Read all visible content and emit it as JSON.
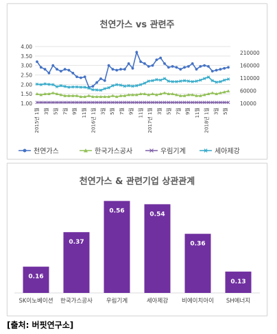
{
  "source": "[출처: 버핏연구소]",
  "chart_data": [
    {
      "type": "line",
      "title": "천연가스 vs 관련주",
      "x_tick_labels": [
        "2015년 1월",
        "3월",
        "5월",
        "7월",
        "9월",
        "11월",
        "2016년 1월",
        "3월",
        "5월",
        "7월",
        "9월",
        "11월",
        "2017년 1월",
        "3월",
        "5월",
        "7월",
        "9월",
        "11월",
        "2018년 1월",
        "3월",
        "5월"
      ],
      "y_left": {
        "ticks": [
          "1.00",
          "1.50",
          "2.00",
          "2.50",
          "3.00",
          "3.50",
          "4.00"
        ],
        "min": 1.0,
        "max": 4.0
      },
      "y_right": {
        "ticks": [
          "10000",
          "60000",
          "110000",
          "160000",
          "210000"
        ],
        "min": 10000,
        "max": 235000
      },
      "legend_position": "bottom",
      "grid": true,
      "series": [
        {
          "name": "천연가스",
          "axis": "left",
          "color": "#4472c4",
          "marker": "circle",
          "values": [
            3.2,
            2.9,
            2.8,
            2.6,
            3.0,
            2.8,
            2.7,
            2.8,
            2.75,
            2.6,
            2.4,
            2.35,
            2.4,
            1.85,
            1.9,
            2.1,
            2.3,
            2.2,
            3.0,
            2.8,
            2.75,
            2.8,
            2.8,
            3.1,
            2.85,
            3.7,
            3.2,
            3.1,
            2.95,
            3.0,
            3.3,
            3.4,
            3.1,
            2.9,
            2.95,
            2.9,
            2.8,
            2.9,
            2.95,
            3.1,
            2.8,
            2.95,
            3.0,
            2.95,
            2.7,
            2.75,
            2.8,
            2.85,
            2.9
          ]
        },
        {
          "name": "한국가스공사",
          "axis": "left",
          "color": "#92c057",
          "marker": "triangle",
          "values": [
            1.5,
            1.45,
            1.5,
            1.5,
            1.55,
            1.5,
            1.45,
            1.4,
            1.4,
            1.4,
            1.4,
            1.35,
            1.35,
            1.4,
            1.35,
            1.35,
            1.35,
            1.35,
            1.35,
            1.4,
            1.35,
            1.4,
            1.4,
            1.45,
            1.45,
            1.45,
            1.5,
            1.5,
            1.45,
            1.5,
            1.45,
            1.5,
            1.55,
            1.5,
            1.5,
            1.45,
            1.4,
            1.4,
            1.45,
            1.45,
            1.4,
            1.4,
            1.45,
            1.5,
            1.55,
            1.5,
            1.55,
            1.6,
            1.65
          ]
        },
        {
          "name": "우림기계",
          "axis": "left",
          "color": "#7f5fa8",
          "marker": "x",
          "values": [
            1.05,
            1.05,
            1.05,
            1.05,
            1.05,
            1.05,
            1.05,
            1.05,
            1.05,
            1.05,
            1.05,
            1.05,
            1.05,
            1.05,
            1.05,
            1.05,
            1.05,
            1.05,
            1.05,
            1.05,
            1.05,
            1.05,
            1.05,
            1.05,
            1.05,
            1.05,
            1.05,
            1.05,
            1.05,
            1.05,
            1.05,
            1.05,
            1.05,
            1.05,
            1.05,
            1.05,
            1.05,
            1.05,
            1.05,
            1.05,
            1.05,
            1.05,
            1.05,
            1.05,
            1.05,
            1.05,
            1.05,
            1.05,
            1.05
          ]
        },
        {
          "name": "세아제강",
          "axis": "right",
          "color": "#33a9c8",
          "marker": "asterisk",
          "values": [
            86000,
            84000,
            87000,
            85000,
            84000,
            76000,
            80000,
            77000,
            74000,
            75000,
            75000,
            74000,
            74000,
            70000,
            64000,
            63000,
            62000,
            68000,
            72000,
            80000,
            84000,
            82000,
            78000,
            80000,
            78000,
            80000,
            84000,
            90000,
            98000,
            100000,
            104000,
            102000,
            108000,
            98000,
            96000,
            96000,
            98000,
            100000,
            98000,
            96000,
            98000,
            102000,
            108000,
            114000,
            100000,
            94000,
            96000,
            102000,
            106000
          ]
        }
      ]
    },
    {
      "type": "bar",
      "title": "천연가스 & 관련기업 상관관계",
      "categories": [
        "SK이노베이션",
        "한국가스공사",
        "우림기계",
        "세아제강",
        "비에이치아이",
        "SH에너지"
      ],
      "values": [
        0.16,
        0.37,
        0.56,
        0.54,
        0.36,
        0.13
      ],
      "data_labels": [
        "0.16",
        "0.37",
        "0.56",
        "0.54",
        "0.36",
        "0.13"
      ],
      "bar_color": "#7030a0",
      "ylim": [
        0,
        0.6
      ]
    }
  ]
}
